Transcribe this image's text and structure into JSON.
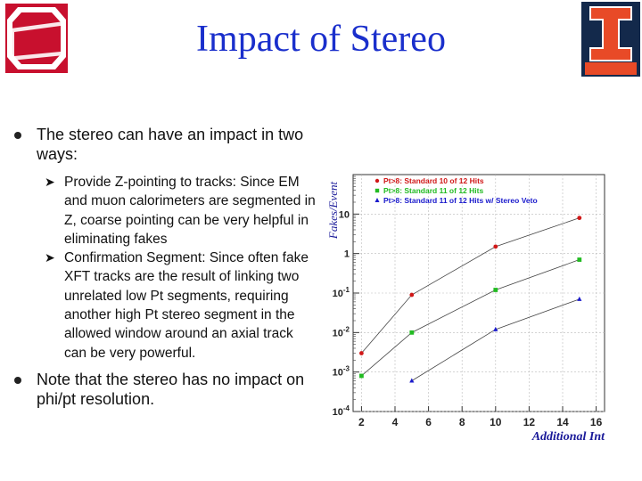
{
  "title": "Impact of Stereo",
  "logos": {
    "left": "OHIO STATE",
    "right": "ILLINOIS"
  },
  "bullets": [
    {
      "text": "The stereo can have an impact in two ways:"
    },
    {
      "text": "Note that the stereo has no impact on phi/pt resolution."
    }
  ],
  "sub_bullets": [
    "Provide Z-pointing to tracks: Since EM and muon calorimeters are segmented in Z, coarse pointing can be very helpful in eliminating fakes",
    "Confirmation Segment: Since often fake XFT tracks are the result of linking two unrelated low Pt segments, requiring another high Pt stereo segment in the allowed window around an axial track can be very powerful."
  ],
  "colors": {
    "title": "#1a2fcc",
    "osu_red": "#c8102e",
    "illini_orange": "#e84a27",
    "illini_blue": "#13294b",
    "legend_red": "#d01818",
    "legend_green": "#22bb22",
    "legend_blue": "#1a1acc"
  },
  "chart_data": {
    "type": "scatter",
    "xlabel": "Additional Int",
    "ylabel": "Fakes/Event",
    "xlim": [
      1.5,
      16.5
    ],
    "ylim": [
      0.0001,
      100
    ],
    "yscale": "log",
    "xticks": [
      "2",
      "4",
      "6",
      "8",
      "10",
      "12",
      "14",
      "16"
    ],
    "yticks": [
      "10",
      "1",
      "10-1",
      "10-2",
      "10-3",
      "10-4"
    ],
    "legend_position": "top",
    "grid": true,
    "series": [
      {
        "name": "Pt>8: Standard 10 of 12 Hits",
        "color": "#d01818",
        "marker": "circle",
        "x": [
          2,
          5,
          10,
          15
        ],
        "y": [
          0.003,
          0.09,
          1.5,
          8
        ]
      },
      {
        "name": "Pt>8: Standard 11 of 12 Hits",
        "color": "#22bb22",
        "marker": "square",
        "x": [
          2,
          5,
          10,
          15
        ],
        "y": [
          0.0008,
          0.01,
          0.12,
          0.7
        ]
      },
      {
        "name": "Pt>8: Standard 11 of 12 Hits w/ Stereo Veto",
        "color": "#1a1acc",
        "marker": "triangle",
        "x": [
          5,
          10,
          15
        ],
        "y": [
          0.0006,
          0.012,
          0.07
        ]
      }
    ]
  }
}
